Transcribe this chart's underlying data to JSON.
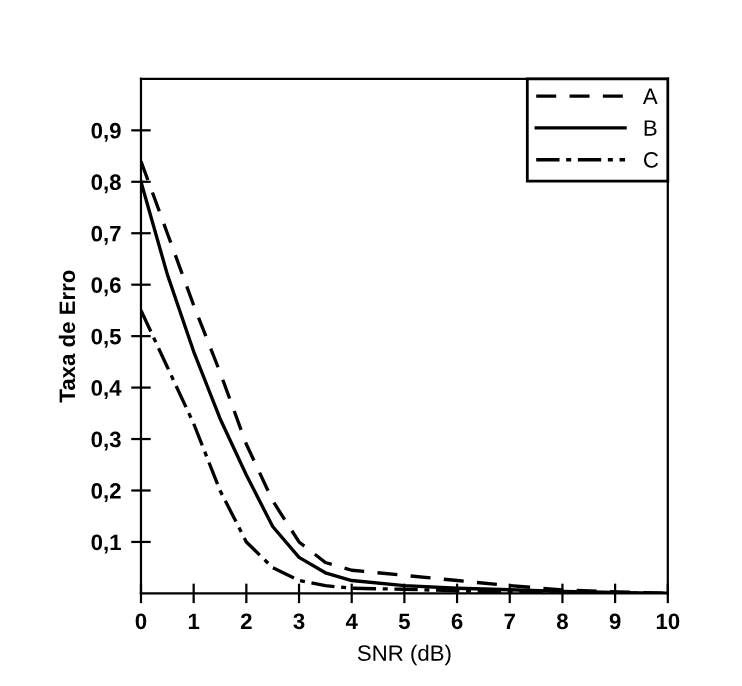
{
  "chart_data": {
    "type": "line",
    "xlabel": "SNR (dB)",
    "ylabel": "Taxa de Erro",
    "xlim": [
      0,
      10
    ],
    "ylim": [
      0,
      1.0
    ],
    "xticks": [
      {
        "value": 0,
        "label": "0"
      },
      1,
      2,
      3,
      4,
      5,
      6,
      7,
      8,
      9,
      10
    ],
    "yticks": [
      {
        "value": 0.1,
        "label": "0,1"
      },
      {
        "value": 0.2,
        "label": "0,2"
      },
      {
        "value": 0.3,
        "label": "0,3"
      },
      {
        "value": 0.4,
        "label": "0,4"
      },
      {
        "value": 0.5,
        "label": "0,5"
      },
      {
        "value": 0.6,
        "label": "0,6"
      },
      {
        "value": 0.7,
        "label": "0,7"
      },
      {
        "value": 0.8,
        "label": "0,8"
      },
      {
        "value": 0.9,
        "label": "0,9"
      }
    ],
    "x": [
      0,
      0.5,
      1,
      1.5,
      2,
      2.5,
      3,
      3.5,
      4,
      5,
      6,
      7,
      8,
      9,
      10
    ],
    "series": [
      {
        "name": "A",
        "color": "#000000",
        "line_style": "dashed",
        "values": [
          0.84,
          0.7,
          0.56,
          0.43,
          0.29,
          0.18,
          0.1,
          0.06,
          0.045,
          0.035,
          0.025,
          0.015,
          0.007,
          0.003,
          0.0
        ]
      },
      {
        "name": "B",
        "color": "#000000",
        "line_style": "solid",
        "values": [
          0.8,
          0.62,
          0.47,
          0.34,
          0.23,
          0.13,
          0.07,
          0.04,
          0.025,
          0.015,
          0.01,
          0.007,
          0.004,
          0.002,
          0.0
        ]
      },
      {
        "name": "C",
        "color": "#000000",
        "line_style": "dashdot",
        "values": [
          0.55,
          0.44,
          0.33,
          0.2,
          0.1,
          0.05,
          0.025,
          0.015,
          0.01,
          0.008,
          0.005,
          0.003,
          0.002,
          0.001,
          0.0
        ]
      }
    ],
    "legend": "top right",
    "grid": false,
    "marker": "none"
  }
}
